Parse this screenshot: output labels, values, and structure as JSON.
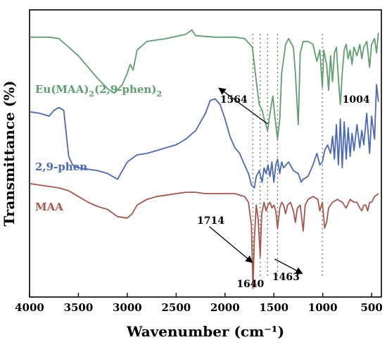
{
  "chart_data": {
    "type": "line",
    "xlabel": "Wavenumber (cm⁻¹)",
    "ylabel": "Transmittance (%)",
    "xlim": [
      4000,
      400
    ],
    "x_reversed": true,
    "xticks": [
      4000,
      3500,
      3000,
      2500,
      2000,
      1500,
      1000,
      500
    ],
    "yticks_shown": false,
    "grid": false,
    "legend": "none",
    "series": [
      {
        "name": "Eu(MAA)2(2,9-phen)2",
        "label_text": "Eu(MAA)",
        "label_sub1": "2",
        "label_mid": "(2,9-phen)",
        "label_sub2": "2",
        "color": "#5f9e6e",
        "points": [
          [
            4000,
            9.05
          ],
          [
            3800,
            9.05
          ],
          [
            3700,
            9.0
          ],
          [
            3600,
            8.7
          ],
          [
            3500,
            8.4
          ],
          [
            3400,
            8.0
          ],
          [
            3300,
            7.6
          ],
          [
            3200,
            7.25
          ],
          [
            3130,
            7.1
          ],
          [
            3050,
            7.4
          ],
          [
            3000,
            7.8
          ],
          [
            2970,
            8.1
          ],
          [
            2940,
            7.9
          ],
          [
            2900,
            8.6
          ],
          [
            2800,
            8.9
          ],
          [
            2600,
            9.0
          ],
          [
            2400,
            9.15
          ],
          [
            2340,
            9.3
          ],
          [
            2300,
            9.1
          ],
          [
            2100,
            9.05
          ],
          [
            1900,
            9.05
          ],
          [
            1800,
            9.0
          ],
          [
            1720,
            8.7
          ],
          [
            1690,
            7.8
          ],
          [
            1650,
            6.7
          ],
          [
            1620,
            6.5
          ],
          [
            1600,
            6.2
          ],
          [
            1564,
            5.8
          ],
          [
            1540,
            6.4
          ],
          [
            1510,
            7.0
          ],
          [
            1490,
            6.3
          ],
          [
            1463,
            5.5
          ],
          [
            1440,
            6.2
          ],
          [
            1420,
            7.8
          ],
          [
            1380,
            8.8
          ],
          [
            1350,
            9.0
          ],
          [
            1300,
            8.7
          ],
          [
            1280,
            7.8
          ],
          [
            1250,
            6.0
          ],
          [
            1230,
            8.5
          ],
          [
            1200,
            8.9
          ],
          [
            1150,
            8.9
          ],
          [
            1100,
            8.8
          ],
          [
            1060,
            8.2
          ],
          [
            1030,
            8.6
          ],
          [
            1004,
            7.3
          ],
          [
            990,
            8.6
          ],
          [
            960,
            8.1
          ],
          [
            940,
            7.2
          ],
          [
            920,
            8.4
          ],
          [
            900,
            7.5
          ],
          [
            880,
            8.5
          ],
          [
            860,
            8.7
          ],
          [
            840,
            7.6
          ],
          [
            820,
            6.7
          ],
          [
            800,
            7.8
          ],
          [
            780,
            8.6
          ],
          [
            760,
            8.8
          ],
          [
            740,
            8.3
          ],
          [
            720,
            8.6
          ],
          [
            700,
            8.1
          ],
          [
            680,
            8.7
          ],
          [
            650,
            8.4
          ],
          [
            620,
            8.8
          ],
          [
            600,
            8.3
          ],
          [
            580,
            8.7
          ],
          [
            550,
            8.9
          ],
          [
            520,
            8.0
          ],
          [
            500,
            8.8
          ],
          [
            470,
            9.0
          ],
          [
            450,
            8.5
          ],
          [
            430,
            9.2
          ]
        ]
      },
      {
        "name": "2,9-phen",
        "color": "#4a68b8",
        "points": [
          [
            4000,
            6.45
          ],
          [
            3900,
            6.4
          ],
          [
            3800,
            6.3
          ],
          [
            3750,
            6.5
          ],
          [
            3700,
            6.6
          ],
          [
            3650,
            6.5
          ],
          [
            3600,
            4.9
          ],
          [
            3560,
            4.6
          ],
          [
            3500,
            4.5
          ],
          [
            3400,
            4.45
          ],
          [
            3300,
            4.4
          ],
          [
            3200,
            4.3
          ],
          [
            3100,
            4.1
          ],
          [
            3050,
            4.4
          ],
          [
            3000,
            4.7
          ],
          [
            2900,
            4.95
          ],
          [
            2800,
            5.0
          ],
          [
            2700,
            5.1
          ],
          [
            2600,
            5.2
          ],
          [
            2500,
            5.3
          ],
          [
            2400,
            5.5
          ],
          [
            2300,
            5.8
          ],
          [
            2200,
            6.4
          ],
          [
            2150,
            6.85
          ],
          [
            2100,
            6.9
          ],
          [
            2050,
            6.7
          ],
          [
            2000,
            6.2
          ],
          [
            1950,
            5.6
          ],
          [
            1900,
            5.2
          ],
          [
            1850,
            5.0
          ],
          [
            1800,
            4.6
          ],
          [
            1760,
            4.3
          ],
          [
            1730,
            3.9
          ],
          [
            1700,
            3.8
          ],
          [
            1680,
            4.2
          ],
          [
            1650,
            4.4
          ],
          [
            1620,
            4.0
          ],
          [
            1600,
            4.5
          ],
          [
            1580,
            4.3
          ],
          [
            1560,
            4.6
          ],
          [
            1540,
            4.2
          ],
          [
            1520,
            4.7
          ],
          [
            1500,
            4.0
          ],
          [
            1480,
            4.6
          ],
          [
            1463,
            4.8
          ],
          [
            1440,
            4.3
          ],
          [
            1420,
            4.7
          ],
          [
            1400,
            4.5
          ],
          [
            1350,
            4.7
          ],
          [
            1300,
            4.4
          ],
          [
            1250,
            4.3
          ],
          [
            1220,
            4.0
          ],
          [
            1200,
            4.1
          ],
          [
            1150,
            4.2
          ],
          [
            1100,
            4.6
          ],
          [
            1060,
            5.0
          ],
          [
            1030,
            4.6
          ],
          [
            1004,
            4.7
          ],
          [
            980,
            5.1
          ],
          [
            950,
            5.3
          ],
          [
            920,
            5.0
          ],
          [
            900,
            5.6
          ],
          [
            880,
            4.8
          ],
          [
            860,
            6.0
          ],
          [
            840,
            4.6
          ],
          [
            820,
            6.2
          ],
          [
            800,
            4.5
          ],
          [
            780,
            6.1
          ],
          [
            760,
            4.8
          ],
          [
            740,
            5.9
          ],
          [
            720,
            4.9
          ],
          [
            700,
            5.7
          ],
          [
            680,
            5.1
          ],
          [
            650,
            6.0
          ],
          [
            620,
            5.2
          ],
          [
            600,
            5.8
          ],
          [
            580,
            5.3
          ],
          [
            550,
            6.4
          ],
          [
            520,
            5.0
          ],
          [
            500,
            6.3
          ],
          [
            470,
            5.5
          ],
          [
            450,
            7.4
          ],
          [
            430,
            6.8
          ]
        ]
      },
      {
        "name": "MAA",
        "color": "#a6574c",
        "points": [
          [
            4000,
            3.95
          ],
          [
            3900,
            3.9
          ],
          [
            3800,
            3.85
          ],
          [
            3700,
            3.8
          ],
          [
            3600,
            3.7
          ],
          [
            3500,
            3.5
          ],
          [
            3400,
            3.3
          ],
          [
            3300,
            3.15
          ],
          [
            3200,
            3.05
          ],
          [
            3100,
            2.8
          ],
          [
            3000,
            2.75
          ],
          [
            2950,
            2.9
          ],
          [
            2900,
            3.2
          ],
          [
            2800,
            3.4
          ],
          [
            2700,
            3.5
          ],
          [
            2600,
            3.55
          ],
          [
            2500,
            3.6
          ],
          [
            2400,
            3.65
          ],
          [
            2300,
            3.65
          ],
          [
            2200,
            3.6
          ],
          [
            2100,
            3.6
          ],
          [
            2000,
            3.6
          ],
          [
            1900,
            3.6
          ],
          [
            1800,
            3.5
          ],
          [
            1760,
            3.3
          ],
          [
            1730,
            2.5
          ],
          [
            1714,
            0.3
          ],
          [
            1700,
            2.0
          ],
          [
            1680,
            3.2
          ],
          [
            1660,
            2.7
          ],
          [
            1640,
            1.4
          ],
          [
            1625,
            2.9
          ],
          [
            1600,
            3.3
          ],
          [
            1580,
            3.0
          ],
          [
            1560,
            3.2
          ],
          [
            1540,
            3.3
          ],
          [
            1520,
            3.1
          ],
          [
            1500,
            3.2
          ],
          [
            1480,
            3.0
          ],
          [
            1463,
            2.4
          ],
          [
            1440,
            3.1
          ],
          [
            1420,
            3.3
          ],
          [
            1400,
            3.2
          ],
          [
            1380,
            2.9
          ],
          [
            1360,
            3.2
          ],
          [
            1330,
            3.3
          ],
          [
            1300,
            3.0
          ],
          [
            1280,
            2.6
          ],
          [
            1260,
            3.1
          ],
          [
            1230,
            3.2
          ],
          [
            1200,
            2.3
          ],
          [
            1180,
            3.2
          ],
          [
            1150,
            3.4
          ],
          [
            1100,
            3.5
          ],
          [
            1050,
            3.4
          ],
          [
            1030,
            3.0
          ],
          [
            1004,
            3.3
          ],
          [
            980,
            2.4
          ],
          [
            960,
            2.6
          ],
          [
            940,
            3.1
          ],
          [
            900,
            3.3
          ],
          [
            850,
            3.4
          ],
          [
            800,
            3.3
          ],
          [
            760,
            3.1
          ],
          [
            720,
            3.4
          ],
          [
            680,
            3.3
          ],
          [
            650,
            3.3
          ],
          [
            620,
            3.1
          ],
          [
            600,
            3.0
          ],
          [
            580,
            3.2
          ],
          [
            560,
            3.2
          ],
          [
            540,
            3.0
          ],
          [
            520,
            3.3
          ],
          [
            500,
            3.3
          ],
          [
            470,
            3.5
          ],
          [
            430,
            3.6
          ]
        ]
      }
    ],
    "guide_lines": [
      1714,
      1640,
      1564,
      1463,
      1004
    ],
    "annotations": [
      {
        "text": "1564",
        "anchor_x": 1564,
        "anchor_y": 5.8
      },
      {
        "text": "1004",
        "anchor_x": 1004
      },
      {
        "text": "1714",
        "anchor_x": 1714,
        "anchor_y": 0.3
      },
      {
        "text": "1640",
        "anchor_x": 1640
      },
      {
        "text": "1463",
        "anchor_x": 1463,
        "anchor_y": 2.4
      }
    ]
  }
}
